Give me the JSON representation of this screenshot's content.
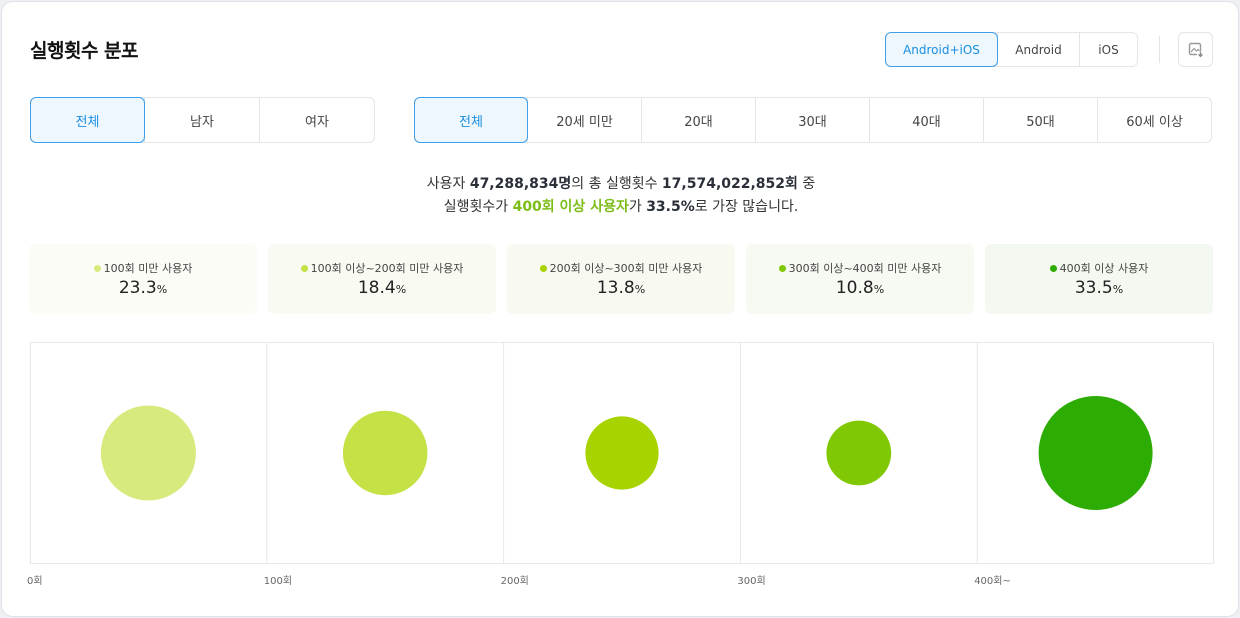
{
  "title": "실행횟수 분포",
  "platform_tabs": [
    "Android+iOS",
    "Android",
    "iOS"
  ],
  "platform_active": 0,
  "gender_tabs": [
    "전체",
    "남자",
    "여자"
  ],
  "gender_active": 0,
  "age_tabs": [
    "전체",
    "20세 미만",
    "20대",
    "30대",
    "40대",
    "50대",
    "60세 이상"
  ],
  "age_active": 0,
  "download_icon": "download-image-icon",
  "summary": {
    "l1_a": "사용자 ",
    "users": "47,288,834명",
    "l1_b": "의 총 실행횟수 ",
    "total_runs": "17,574,022,852회",
    "l1_c": " 중",
    "l2_a": "실행횟수가 ",
    "top_group": "400회 이상 사용자",
    "l2_b": "가 ",
    "top_pct": "33.5%",
    "l2_c": "로 가장 많습니다."
  },
  "stats": [
    {
      "label": "100회 미만 사용자",
      "value": "23.3",
      "unit": "%",
      "color": "#d6ea7e",
      "bg": "#fbfcf6"
    },
    {
      "label": "100회 이상~200회 미만 사용자",
      "value": "18.4",
      "unit": "%",
      "color": "#c4e146",
      "bg": "#f9fbf3"
    },
    {
      "label": "200회 이상~300회 미만 사용자",
      "value": "13.8",
      "unit": "%",
      "color": "#a7d300",
      "bg": "#f8faf2"
    },
    {
      "label": "300회 이상~400회 미만 사용자",
      "value": "10.8",
      "unit": "%",
      "color": "#80c804",
      "bg": "#f7faf2"
    },
    {
      "label": "400회 이상 사용자",
      "value": "33.5",
      "unit": "%",
      "color": "#2dac03",
      "bg": "#f3f9f0"
    }
  ],
  "chart_data": {
    "type": "bubble",
    "categories": [
      "0회~100회",
      "100회~200회",
      "200회~300회",
      "300회~400회",
      "400회~"
    ],
    "values": [
      23.3,
      18.4,
      13.8,
      10.8,
      33.5
    ],
    "colors": [
      "#d6ea7e",
      "#c4e146",
      "#a7d300",
      "#80c804",
      "#2dac03"
    ],
    "x_ticks": [
      "0회",
      "100회",
      "200회",
      "300회",
      "400회~"
    ]
  }
}
